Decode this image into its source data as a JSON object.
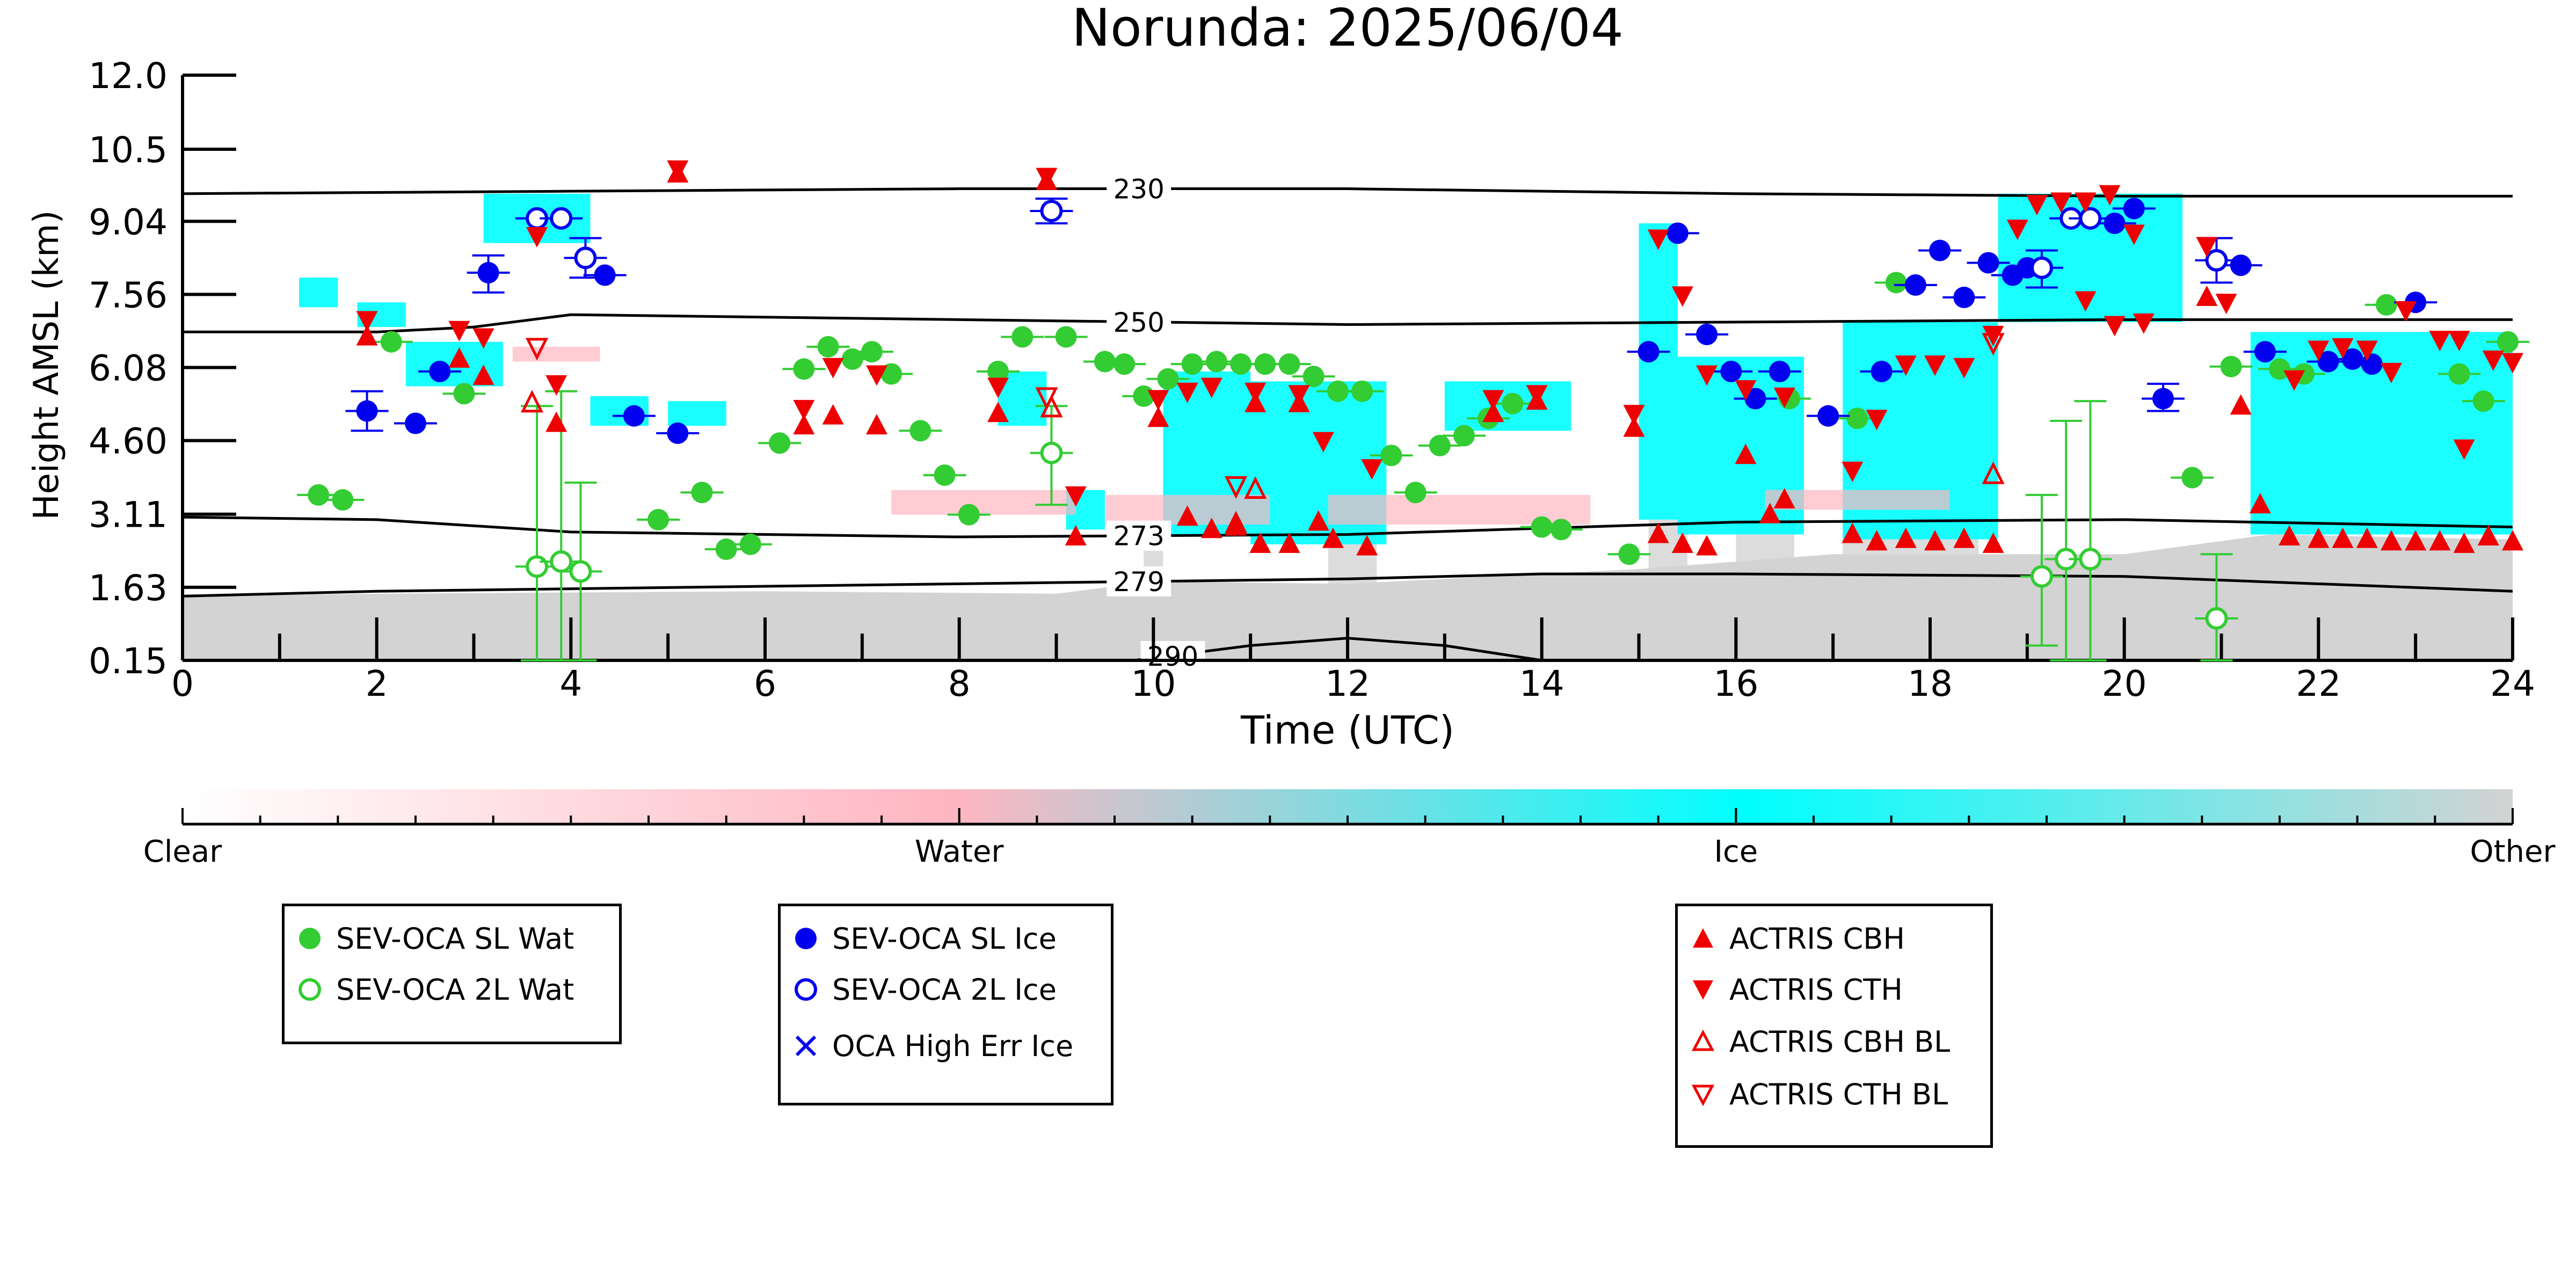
{
  "chart_data": {
    "type": "scatter",
    "title": "Norunda: 2025/06/04",
    "xlabel": "Time (UTC)",
    "ylabel": "Height AMSL (km)",
    "xlim": [
      0,
      24
    ],
    "ylim": [
      0.15,
      12.0
    ],
    "x_ticks": [
      0,
      2,
      4,
      6,
      8,
      10,
      12,
      14,
      16,
      18,
      20,
      22,
      24
    ],
    "y_ticks": [
      "0.15",
      "1.63",
      "3.11",
      "4.60",
      "6.08",
      "7.56",
      "9.04",
      "10.5",
      "12.0"
    ],
    "y_tick_values": [
      0.15,
      1.63,
      3.11,
      4.6,
      6.08,
      7.56,
      9.04,
      10.5,
      12.0
    ],
    "isotherms": [
      {
        "label": "230",
        "points": [
          [
            0,
            9.6
          ],
          [
            4,
            9.65
          ],
          [
            8,
            9.7
          ],
          [
            12,
            9.7
          ],
          [
            16,
            9.6
          ],
          [
            20,
            9.55
          ],
          [
            24,
            9.55
          ]
        ]
      },
      {
        "label": "250",
        "points": [
          [
            0,
            6.8
          ],
          [
            2,
            6.8
          ],
          [
            3,
            6.9
          ],
          [
            4,
            7.15
          ],
          [
            8,
            7.05
          ],
          [
            12,
            6.95
          ],
          [
            16,
            7.0
          ],
          [
            20,
            7.05
          ],
          [
            24,
            7.05
          ]
        ]
      },
      {
        "label": "273",
        "points": [
          [
            0,
            3.05
          ],
          [
            2,
            3.0
          ],
          [
            4,
            2.75
          ],
          [
            8,
            2.65
          ],
          [
            12,
            2.7
          ],
          [
            16,
            2.95
          ],
          [
            20,
            3.0
          ],
          [
            24,
            2.85
          ]
        ]
      },
      {
        "label": "279",
        "points": [
          [
            0,
            1.45
          ],
          [
            2,
            1.55
          ],
          [
            6,
            1.65
          ],
          [
            10,
            1.75
          ],
          [
            12,
            1.8
          ],
          [
            14,
            1.9
          ],
          [
            16,
            1.9
          ],
          [
            20,
            1.85
          ],
          [
            24,
            1.55
          ]
        ]
      },
      {
        "label": "290",
        "points": [
          [
            9.8,
            0.15
          ],
          [
            11,
            0.45
          ],
          [
            12,
            0.6
          ],
          [
            13,
            0.45
          ],
          [
            14,
            0.15
          ]
        ]
      }
    ],
    "series": [
      {
        "name": "SEV-OCA SL Wat",
        "color": "#33cc33",
        "marker": "circle-filled",
        "points": [
          [
            1.4,
            3.5
          ],
          [
            1.65,
            3.4
          ],
          [
            2.15,
            6.6
          ],
          [
            2.9,
            5.55
          ],
          [
            4.9,
            3.0
          ],
          [
            5.35,
            3.55
          ],
          [
            5.6,
            2.4
          ],
          [
            5.85,
            2.5
          ],
          [
            6.15,
            4.55
          ],
          [
            6.4,
            6.05
          ],
          [
            6.65,
            6.5
          ],
          [
            6.9,
            6.25
          ],
          [
            7.1,
            6.4
          ],
          [
            7.3,
            5.95
          ],
          [
            7.6,
            4.8
          ],
          [
            7.85,
            3.9
          ],
          [
            8.1,
            3.1
          ],
          [
            8.4,
            6.0
          ],
          [
            8.65,
            6.7
          ],
          [
            9.1,
            6.7
          ],
          [
            9.5,
            6.2
          ],
          [
            9.7,
            6.15
          ],
          [
            9.9,
            5.5
          ],
          [
            10.15,
            5.85
          ],
          [
            10.4,
            6.15
          ],
          [
            10.65,
            6.2
          ],
          [
            10.9,
            6.15
          ],
          [
            11.15,
            6.15
          ],
          [
            11.4,
            6.15
          ],
          [
            11.65,
            5.9
          ],
          [
            11.9,
            5.6
          ],
          [
            12.15,
            5.6
          ],
          [
            12.45,
            4.3
          ],
          [
            12.7,
            3.55
          ],
          [
            12.95,
            4.5
          ],
          [
            13.2,
            4.7
          ],
          [
            13.45,
            5.05
          ],
          [
            13.7,
            5.35
          ],
          [
            14.0,
            2.85
          ],
          [
            14.2,
            2.8
          ],
          [
            14.9,
            2.3
          ],
          [
            16.55,
            5.45
          ],
          [
            17.25,
            5.05
          ],
          [
            17.65,
            7.8
          ],
          [
            21.1,
            6.1
          ],
          [
            21.6,
            6.05
          ],
          [
            21.85,
            5.95
          ],
          [
            22.7,
            7.35
          ],
          [
            23.45,
            5.95
          ],
          [
            23.7,
            5.4
          ],
          [
            23.95,
            6.6
          ],
          [
            20.7,
            3.85
          ]
        ]
      },
      {
        "name": "SEV-OCA 2L Wat",
        "color": "#33cc33",
        "marker": "circle-open",
        "points": [
          [
            3.65,
            2.05
          ],
          [
            3.9,
            2.15
          ],
          [
            4.1,
            1.95
          ],
          [
            8.95,
            4.35
          ],
          [
            19.15,
            1.85
          ],
          [
            19.4,
            2.2
          ],
          [
            19.65,
            2.2
          ],
          [
            20.95,
            1.0
          ]
        ]
      },
      {
        "name": "SEV-OCA SL Ice",
        "color": "#0000ee",
        "marker": "circle-filled",
        "points": [
          [
            1.9,
            5.2
          ],
          [
            2.4,
            4.95
          ],
          [
            2.65,
            6.0
          ],
          [
            3.15,
            8.0
          ],
          [
            4.35,
            7.95
          ],
          [
            4.65,
            5.1
          ],
          [
            5.1,
            4.75
          ],
          [
            15.1,
            6.4
          ],
          [
            15.4,
            8.8
          ],
          [
            15.7,
            6.75
          ],
          [
            15.95,
            6.0
          ],
          [
            16.2,
            5.45
          ],
          [
            16.45,
            6.0
          ],
          [
            16.95,
            5.1
          ],
          [
            17.5,
            6.0
          ],
          [
            17.85,
            7.75
          ],
          [
            18.1,
            8.45
          ],
          [
            18.35,
            7.5
          ],
          [
            18.6,
            8.2
          ],
          [
            18.85,
            7.95
          ],
          [
            19.0,
            8.1
          ],
          [
            19.9,
            9.0
          ],
          [
            20.1,
            9.3
          ],
          [
            20.4,
            5.45
          ],
          [
            21.2,
            8.15
          ],
          [
            21.45,
            6.4
          ],
          [
            22.1,
            6.2
          ],
          [
            22.35,
            6.25
          ],
          [
            22.55,
            6.15
          ],
          [
            23.0,
            7.4
          ]
        ]
      },
      {
        "name": "SEV-OCA 2L Ice",
        "color": "#0000ee",
        "marker": "circle-open",
        "points": [
          [
            3.65,
            9.1
          ],
          [
            3.9,
            9.1
          ],
          [
            4.15,
            8.3
          ],
          [
            8.95,
            9.25
          ],
          [
            19.15,
            8.1
          ],
          [
            19.45,
            9.1
          ],
          [
            19.65,
            9.1
          ],
          [
            20.95,
            8.25
          ]
        ]
      },
      {
        "name": "OCA High Err Ice",
        "color": "#0000ee",
        "marker": "x",
        "points": []
      },
      {
        "name": "ACTRIS CBH",
        "color": "#ee0000",
        "marker": "triangle-up-filled",
        "points": [
          [
            1.9,
            6.7
          ],
          [
            2.85,
            6.25
          ],
          [
            3.1,
            5.9
          ],
          [
            3.85,
            4.95
          ],
          [
            5.1,
            10.0
          ],
          [
            6.4,
            4.9
          ],
          [
            6.7,
            5.1
          ],
          [
            7.15,
            4.9
          ],
          [
            8.4,
            5.15
          ],
          [
            8.9,
            9.85
          ],
          [
            9.2,
            2.65
          ],
          [
            10.05,
            5.05
          ],
          [
            10.35,
            3.05
          ],
          [
            10.6,
            2.8
          ],
          [
            10.85,
            2.85
          ],
          [
            11.05,
            5.35
          ],
          [
            11.1,
            2.5
          ],
          [
            11.4,
            2.5
          ],
          [
            11.5,
            5.35
          ],
          [
            11.7,
            2.95
          ],
          [
            11.85,
            2.6
          ],
          [
            12.2,
            2.45
          ],
          [
            13.5,
            5.15
          ],
          [
            13.95,
            5.4
          ],
          [
            14.95,
            4.85
          ],
          [
            15.2,
            2.7
          ],
          [
            15.45,
            2.5
          ],
          [
            15.7,
            2.45
          ],
          [
            16.1,
            4.3
          ],
          [
            16.35,
            3.1
          ],
          [
            16.5,
            3.4
          ],
          [
            17.2,
            2.7
          ],
          [
            17.45,
            2.55
          ],
          [
            17.75,
            2.6
          ],
          [
            18.05,
            2.55
          ],
          [
            18.35,
            2.6
          ],
          [
            18.65,
            2.5
          ],
          [
            20.85,
            7.5
          ],
          [
            21.2,
            5.3
          ],
          [
            21.4,
            3.3
          ],
          [
            21.7,
            2.65
          ],
          [
            22.0,
            2.6
          ],
          [
            22.25,
            2.6
          ],
          [
            22.5,
            2.6
          ],
          [
            22.75,
            2.55
          ],
          [
            23.0,
            2.55
          ],
          [
            23.25,
            2.55
          ],
          [
            23.5,
            2.5
          ],
          [
            23.75,
            2.65
          ],
          [
            24.0,
            2.55
          ]
        ]
      },
      {
        "name": "ACTRIS CTH",
        "color": "#ee0000",
        "marker": "triangle-down-filled",
        "points": [
          [
            1.9,
            7.05
          ],
          [
            2.85,
            6.85
          ],
          [
            3.1,
            6.7
          ],
          [
            3.65,
            8.75
          ],
          [
            3.85,
            5.75
          ],
          [
            5.1,
            10.1
          ],
          [
            6.4,
            5.25
          ],
          [
            6.7,
            6.1
          ],
          [
            7.15,
            5.95
          ],
          [
            8.4,
            5.7
          ],
          [
            8.9,
            9.95
          ],
          [
            9.2,
            3.5
          ],
          [
            10.05,
            5.45
          ],
          [
            10.35,
            5.6
          ],
          [
            10.6,
            5.7
          ],
          [
            11.05,
            5.6
          ],
          [
            11.5,
            5.55
          ],
          [
            11.75,
            4.6
          ],
          [
            12.25,
            4.05
          ],
          [
            13.5,
            5.45
          ],
          [
            13.95,
            5.55
          ],
          [
            14.95,
            5.15
          ],
          [
            15.2,
            8.7
          ],
          [
            15.45,
            7.55
          ],
          [
            15.7,
            5.95
          ],
          [
            16.1,
            5.65
          ],
          [
            16.5,
            5.5
          ],
          [
            17.2,
            4.0
          ],
          [
            17.45,
            5.05
          ],
          [
            17.75,
            6.15
          ],
          [
            18.05,
            6.15
          ],
          [
            18.35,
            6.1
          ],
          [
            18.65,
            6.75
          ],
          [
            18.9,
            8.9
          ],
          [
            19.1,
            9.4
          ],
          [
            19.35,
            9.45
          ],
          [
            19.6,
            9.45
          ],
          [
            19.85,
            9.6
          ],
          [
            20.1,
            8.8
          ],
          [
            19.6,
            7.45
          ],
          [
            19.9,
            6.95
          ],
          [
            20.2,
            7.0
          ],
          [
            20.85,
            8.55
          ],
          [
            21.05,
            7.4
          ],
          [
            21.75,
            5.85
          ],
          [
            22.0,
            6.45
          ],
          [
            22.25,
            6.5
          ],
          [
            22.5,
            6.45
          ],
          [
            22.75,
            6.0
          ],
          [
            22.9,
            7.25
          ],
          [
            23.25,
            6.65
          ],
          [
            23.45,
            6.65
          ],
          [
            23.5,
            4.45
          ],
          [
            24.0,
            6.2
          ],
          [
            23.8,
            6.25
          ]
        ]
      },
      {
        "name": "ACTRIS CBH BL",
        "color": "#ee0000",
        "marker": "triangle-up-open",
        "points": [
          [
            3.6,
            5.35
          ],
          [
            8.95,
            5.25
          ],
          [
            10.85,
            2.9
          ],
          [
            11.05,
            3.6
          ],
          [
            18.65,
            3.9
          ]
        ]
      },
      {
        "name": "ACTRIS CTH BL",
        "color": "#ee0000",
        "marker": "triangle-down-open",
        "points": [
          [
            3.65,
            6.5
          ],
          [
            8.9,
            5.5
          ],
          [
            10.85,
            3.7
          ],
          [
            18.65,
            6.6
          ]
        ]
      }
    ],
    "error_bars": [
      {
        "series": "SEV-OCA 2L Wat",
        "x": 3.65,
        "lo": 0.15,
        "hi": 5.3
      },
      {
        "series": "SEV-OCA 2L Wat",
        "x": 3.9,
        "lo": 0.15,
        "hi": 5.6
      },
      {
        "series": "SEV-OCA 2L Wat",
        "x": 4.1,
        "lo": 0.15,
        "hi": 3.75
      },
      {
        "series": "SEV-OCA 2L Wat",
        "x": 8.95,
        "lo": 3.3,
        "hi": 5.3
      },
      {
        "series": "SEV-OCA 2L Wat",
        "x": 19.15,
        "lo": 0.45,
        "hi": 3.5
      },
      {
        "series": "SEV-OCA 2L Wat",
        "x": 19.4,
        "lo": 0.15,
        "hi": 5.0
      },
      {
        "series": "SEV-OCA 2L Wat",
        "x": 19.65,
        "lo": 0.15,
        "hi": 5.4
      },
      {
        "series": "SEV-OCA 2L Wat",
        "x": 20.95,
        "lo": 0.15,
        "hi": 2.3
      },
      {
        "series": "SEV-OCA SL Ice",
        "x": 1.9,
        "lo": 4.8,
        "hi": 5.6
      },
      {
        "series": "SEV-OCA SL Ice",
        "x": 3.15,
        "lo": 7.6,
        "hi": 8.35
      },
      {
        "series": "SEV-OCA 2L Ice",
        "x": 4.15,
        "lo": 7.9,
        "hi": 8.7
      },
      {
        "series": "SEV-OCA 2L Ice",
        "x": 19.15,
        "lo": 7.7,
        "hi": 8.45
      },
      {
        "series": "SEV-OCA 2L Ice",
        "x": 20.95,
        "lo": 7.8,
        "hi": 8.7
      },
      {
        "series": "SEV-OCA SL Ice",
        "x": 20.4,
        "lo": 5.2,
        "hi": 5.75
      },
      {
        "series": "SEV-OCA 2L Ice",
        "x": 8.95,
        "lo": 9.0,
        "hi": 9.5
      }
    ],
    "phase_colorbar": {
      "labels": [
        "Clear",
        "Water",
        "Ice",
        "Other"
      ],
      "colors": [
        "#ffffff",
        "#ffb6c1",
        "#00ffff",
        "#d3d3d3"
      ]
    }
  },
  "legends": {
    "box1": [
      "SEV-OCA SL Wat",
      "SEV-OCA 2L Wat"
    ],
    "box2": [
      "SEV-OCA SL Ice",
      "SEV-OCA 2L Ice",
      "OCA High Err Ice"
    ],
    "box3": [
      "ACTRIS CBH",
      "ACTRIS CTH",
      "ACTRIS CBH BL",
      "ACTRIS CTH BL"
    ]
  }
}
